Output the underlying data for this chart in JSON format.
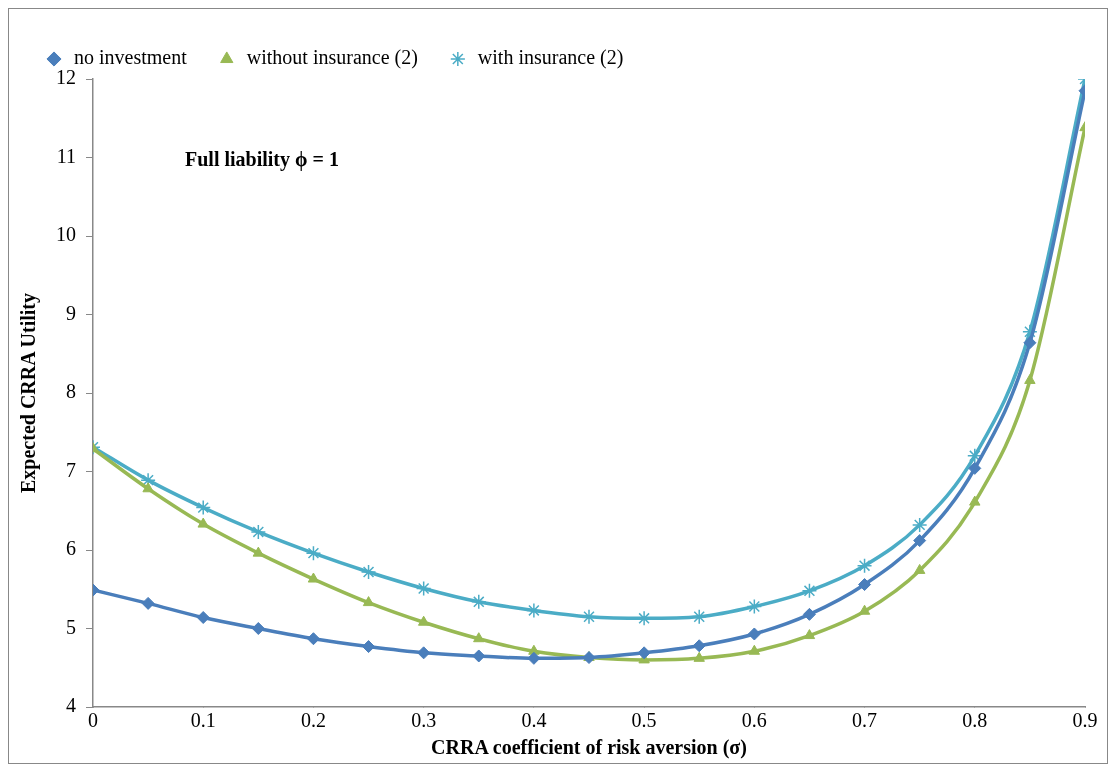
{
  "chart_data": {
    "type": "line",
    "xlabel": "CRRA coefficient of risk aversion (σ)",
    "ylabel": "Expected CRRA Utility",
    "annotations": [
      "Full liability ϕ = 1"
    ],
    "x": [
      0,
      0.05,
      0.1,
      0.15,
      0.2,
      0.25,
      0.3,
      0.35,
      0.4,
      0.45,
      0.5,
      0.55,
      0.6,
      0.65,
      0.7,
      0.75,
      0.8,
      0.85,
      0.9
    ],
    "series": [
      {
        "name": "no investment",
        "color": "#4a7ebb",
        "marker": "diamond",
        "values": [
          5.49,
          5.32,
          5.14,
          5.0,
          4.87,
          4.77,
          4.69,
          4.65,
          4.62,
          4.63,
          4.69,
          4.78,
          4.93,
          5.18,
          5.56,
          6.12,
          7.04,
          8.64,
          11.85
        ]
      },
      {
        "name": "without insurance (2)",
        "color": "#98b954",
        "marker": "triangle",
        "values": [
          7.29,
          6.78,
          6.33,
          5.96,
          5.63,
          5.33,
          5.08,
          4.87,
          4.71,
          4.63,
          4.6,
          4.62,
          4.71,
          4.91,
          5.22,
          5.74,
          6.61,
          8.16,
          11.38
        ]
      },
      {
        "name": "with insurance (2)",
        "color": "#4bacc6",
        "marker": "cross",
        "values": [
          7.31,
          6.89,
          6.54,
          6.23,
          5.96,
          5.72,
          5.51,
          5.34,
          5.23,
          5.15,
          5.13,
          5.15,
          5.28,
          5.48,
          5.8,
          6.32,
          7.2,
          8.78,
          12.0
        ]
      }
    ],
    "xlim": [
      0,
      0.9
    ],
    "xticks": [
      0,
      0.1,
      0.2,
      0.3,
      0.4,
      0.5,
      0.6,
      0.7,
      0.8,
      0.9
    ],
    "ylim": [
      4,
      12
    ],
    "yticks": [
      4,
      5,
      6,
      7,
      8,
      9,
      10,
      11,
      12
    ],
    "grid": false,
    "legend": "top left",
    "line_style": "solid"
  }
}
